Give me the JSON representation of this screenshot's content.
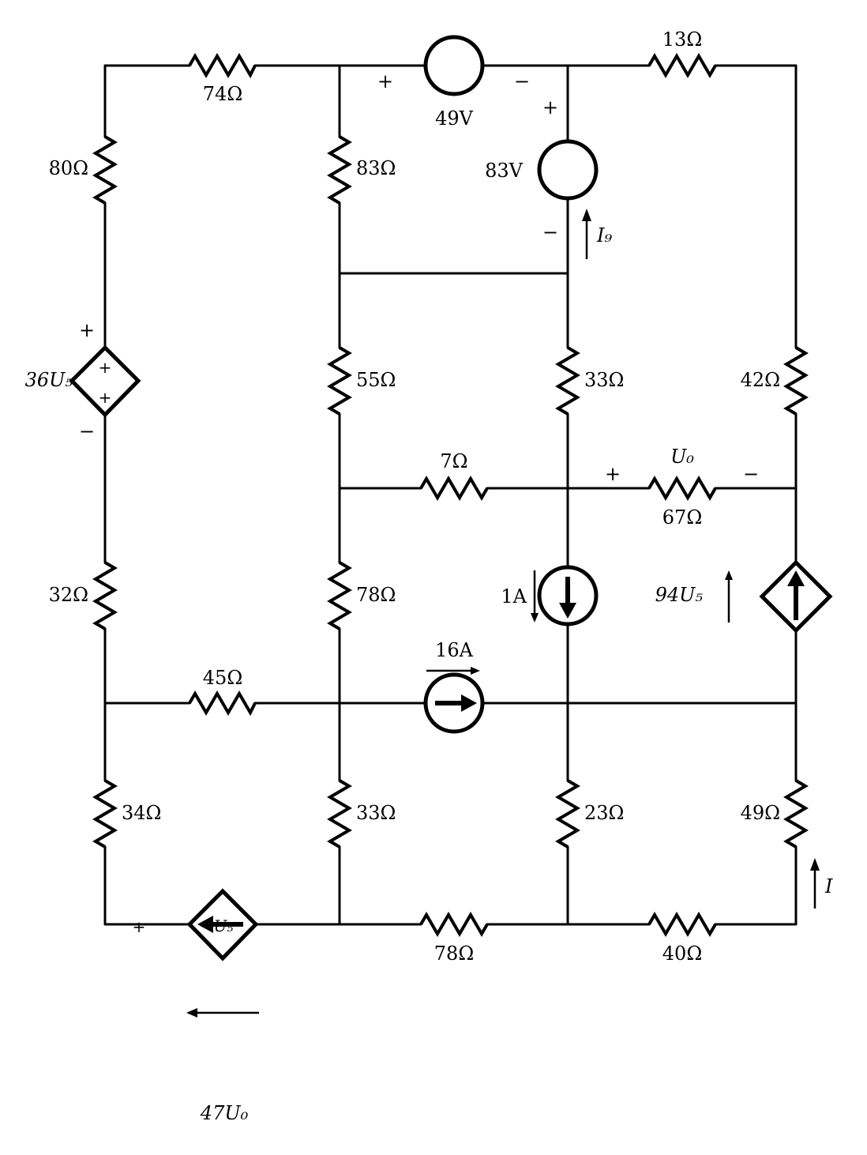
{
  "resistors": {
    "r74": "74Ω",
    "r13": "13Ω",
    "r80": "80Ω",
    "r83": "83Ω",
    "r55": "55Ω",
    "r33a": "33Ω",
    "r42": "42Ω",
    "r7": "7Ω",
    "r67": "67Ω",
    "r32": "32Ω",
    "r78a": "78Ω",
    "r45": "45Ω",
    "r34": "34Ω",
    "r33b": "33Ω",
    "r23": "23Ω",
    "r49": "49Ω",
    "r78b": "78Ω",
    "r40": "40Ω"
  },
  "voltage_sources": {
    "v49": "49V",
    "v83": "83V"
  },
  "current_sources": {
    "i16": "16A",
    "i1": "1A"
  },
  "dependent_sources": {
    "vcvs_left": "36U₅",
    "cccs_right": "94U₅",
    "bottom": "47U₀",
    "bottom_inner": "U₅"
  },
  "labels": {
    "i9": "I₉",
    "i": "I",
    "u0": "U₀",
    "plus": "+",
    "minus": "−"
  }
}
